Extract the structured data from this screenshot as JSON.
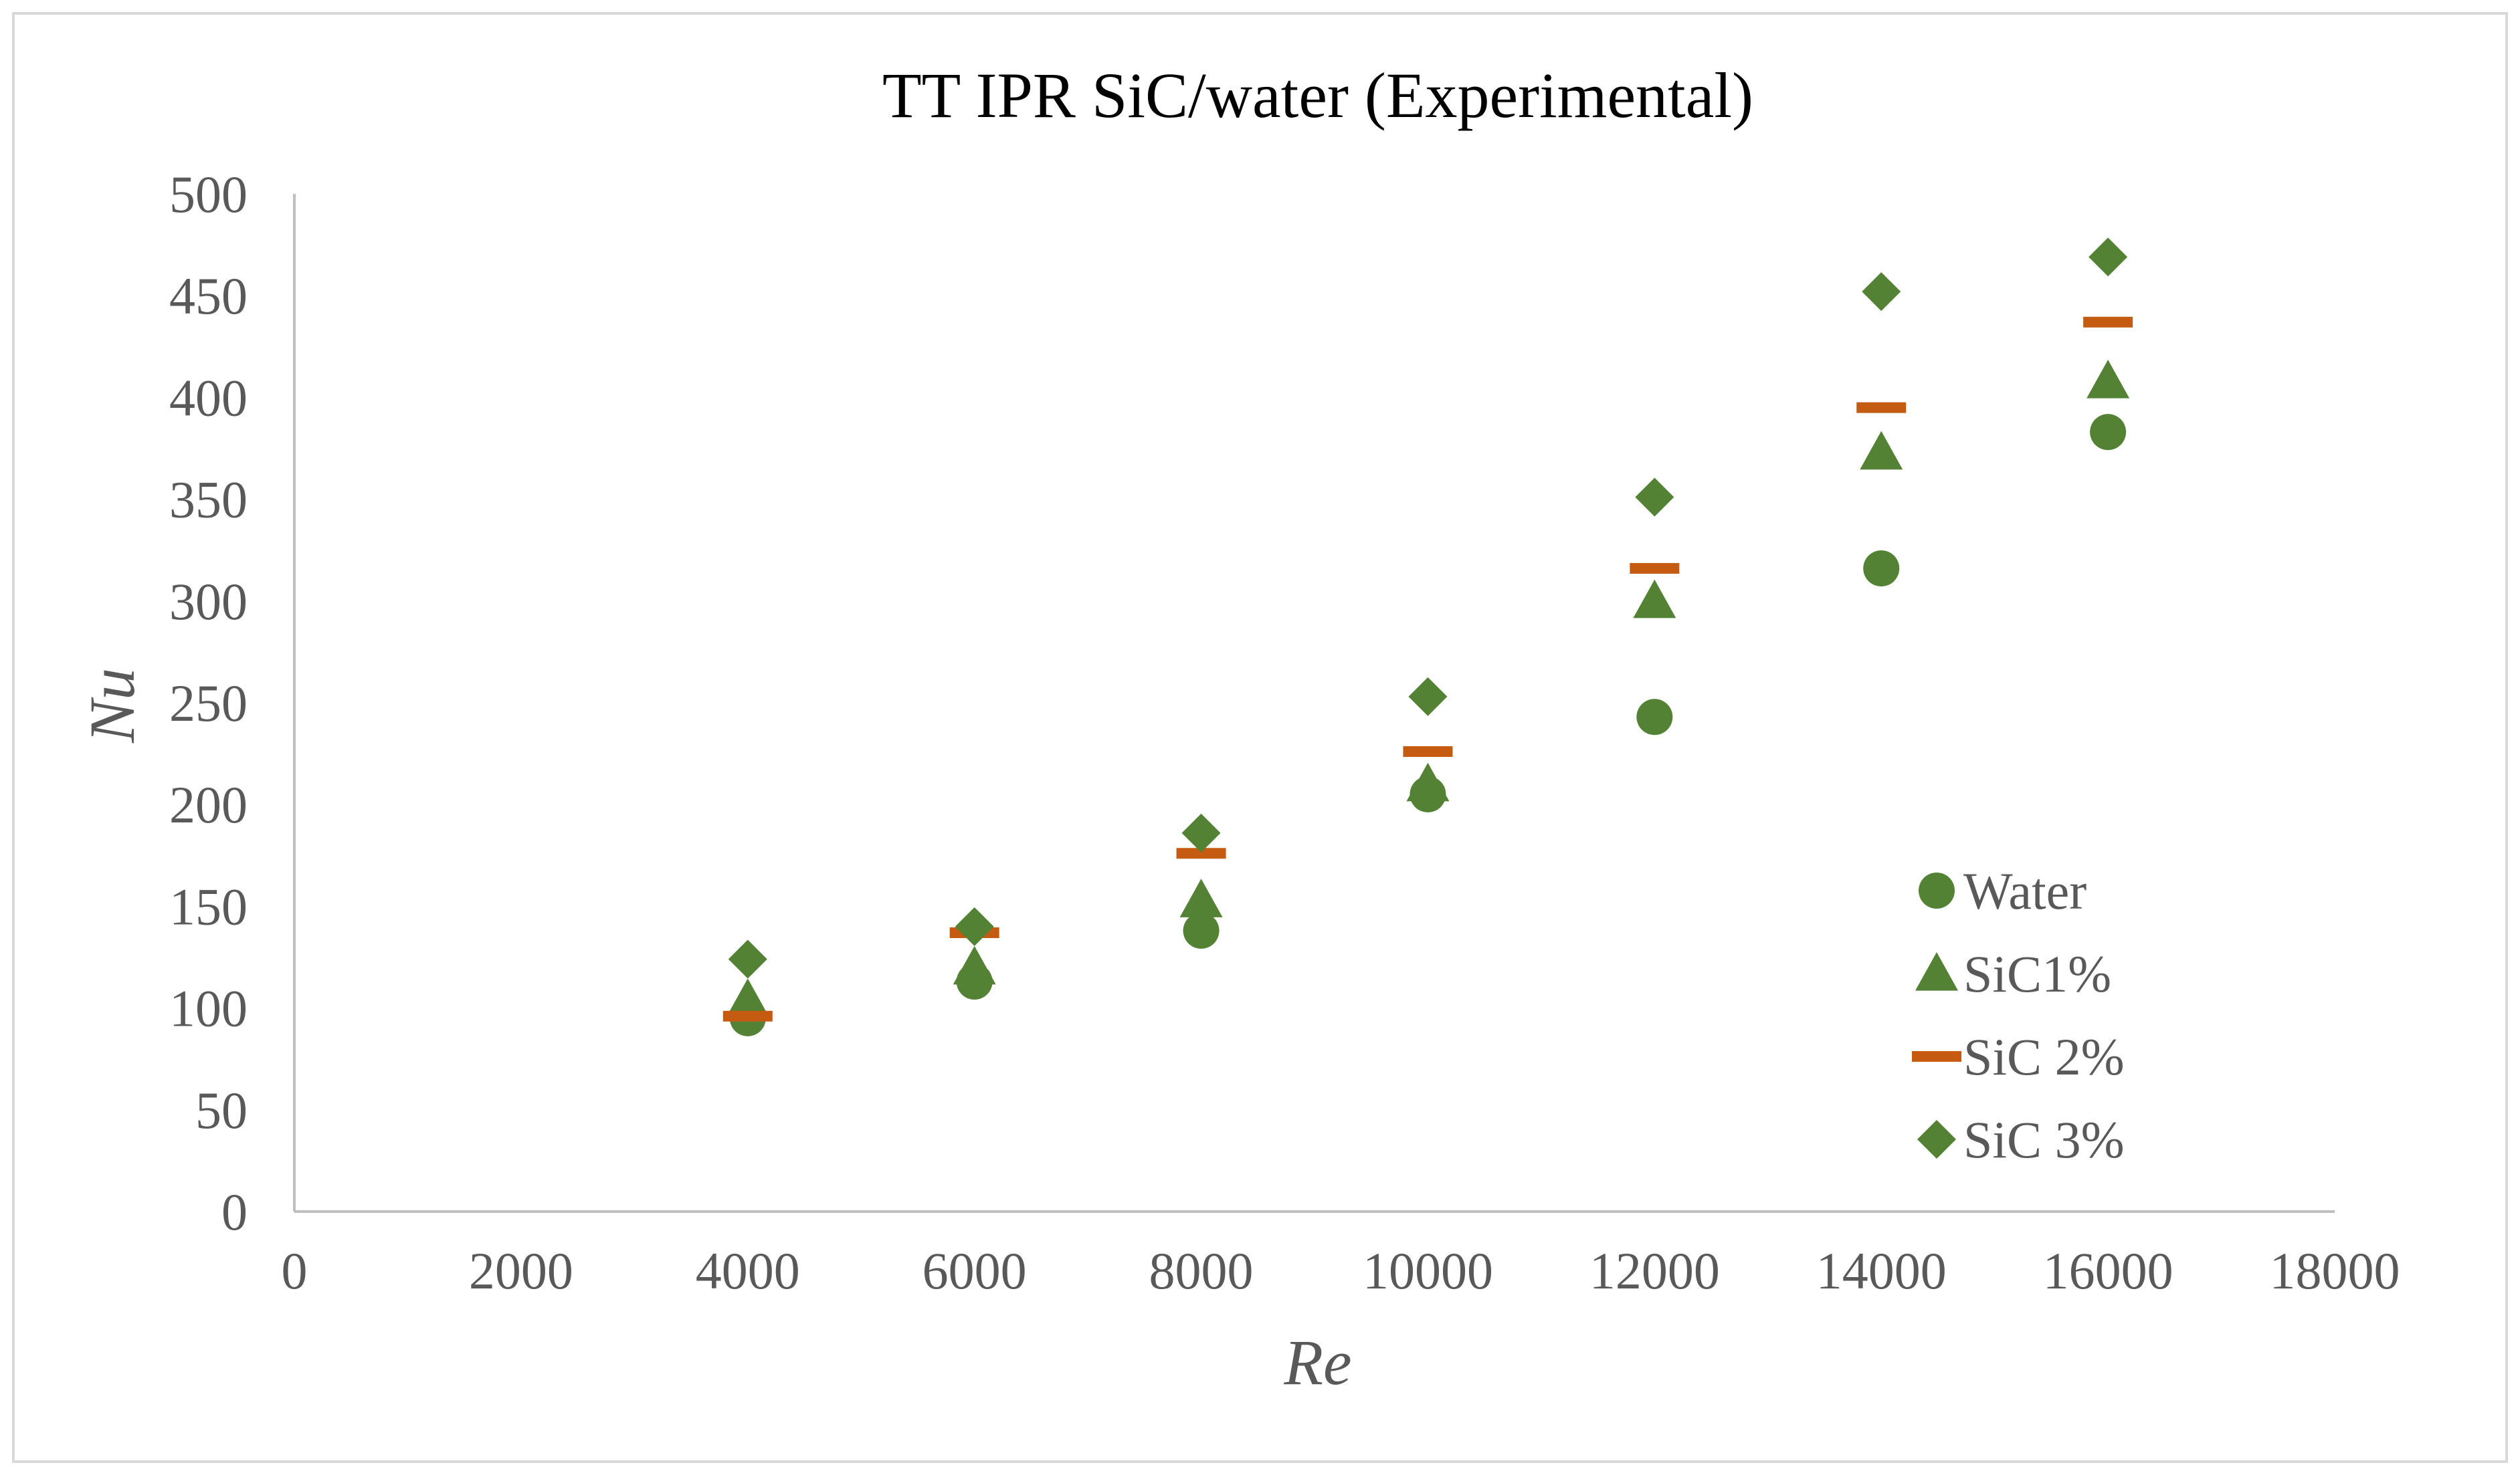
{
  "chart_data": {
    "type": "scatter",
    "title": "TT IPR SiC/water (Experimental)",
    "xlabel": "Re",
    "ylabel": "Nu",
    "xlim": [
      0,
      18000
    ],
    "ylim": [
      0,
      500
    ],
    "x_ticks": [
      "0",
      "2000",
      "4000",
      "6000",
      "8000",
      "10000",
      "12000",
      "14000",
      "16000",
      "18000"
    ],
    "y_ticks": [
      "0",
      "50",
      "100",
      "150",
      "200",
      "250",
      "300",
      "350",
      "400",
      "450",
      "500"
    ],
    "grid": false,
    "legend_position": "right-center",
    "series": [
      {
        "name": "Water",
        "marker": "circle",
        "color": "#548235",
        "x": [
          4000,
          6000,
          8000,
          10000,
          12000,
          14000,
          16000
        ],
        "y": [
          95,
          113,
          138,
          205,
          243,
          316,
          383
        ]
      },
      {
        "name": "SiC1%",
        "marker": "triangle",
        "color": "#548235",
        "x": [
          4000,
          6000,
          8000,
          10000,
          12000,
          14000,
          16000
        ],
        "y": [
          104,
          120,
          153,
          210,
          300,
          373,
          408
        ]
      },
      {
        "name": "SiC 2%",
        "marker": "dash",
        "color": "#C55A11",
        "x": [
          4000,
          6000,
          8000,
          10000,
          12000,
          14000,
          16000
        ],
        "y": [
          96,
          137,
          176,
          226,
          316,
          395,
          437
        ]
      },
      {
        "name": "SiC 3%",
        "marker": "diamond",
        "color": "#548235",
        "x": [
          4000,
          6000,
          8000,
          10000,
          12000,
          14000,
          16000
        ],
        "y": [
          124,
          140,
          186,
          253,
          351,
          452,
          469
        ]
      }
    ]
  }
}
